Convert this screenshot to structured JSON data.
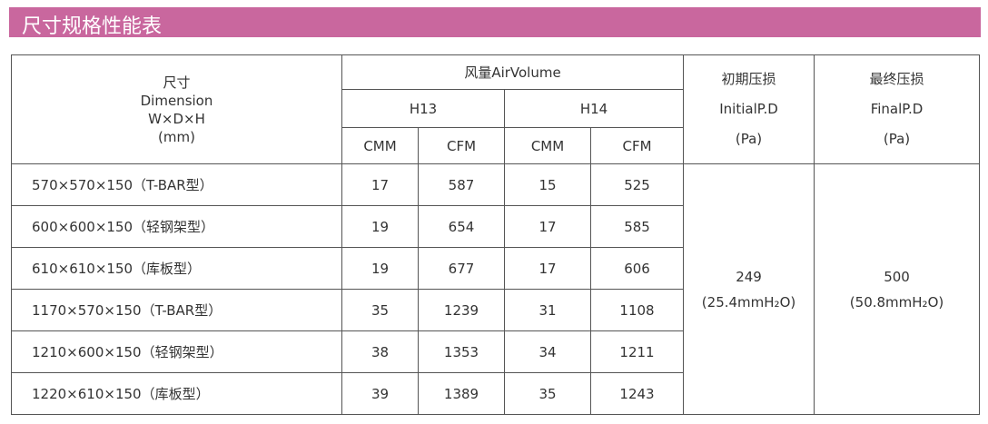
{
  "header": {
    "title": "尺寸规格性能表"
  },
  "table": {
    "dimension": [
      "尺寸",
      "Dimension",
      "W×D×H",
      "(mm)"
    ],
    "air_volume": "风量AirVolume",
    "grades": [
      "H13",
      "H14"
    ],
    "units": [
      "CMM",
      "CFM",
      "CMM",
      "CFM"
    ],
    "initial": [
      "初期压损",
      "InitialP.D",
      "(Pa)"
    ],
    "final": [
      "最终压损",
      "FinalP.D",
      "(Pa)"
    ],
    "rows": [
      [
        "570×570×150（T-BAR型）",
        17,
        587,
        15,
        525
      ],
      [
        "600×600×150（轻钢架型）",
        19,
        654,
        17,
        585
      ],
      [
        "610×610×150（库板型）",
        19,
        677,
        17,
        606
      ],
      [
        "1170×570×150（T-BAR型）",
        35,
        1239,
        31,
        1108
      ],
      [
        "1210×600×150（轻钢架型）",
        38,
        1353,
        34,
        1211
      ],
      [
        "1220×610×150（库板型）",
        39,
        1389,
        35,
        1243
      ]
    ],
    "initial_value": [
      249,
      "(25.4mmH₂O)"
    ],
    "final_value": [
      500,
      "(50.8mmH₂O)"
    ]
  }
}
